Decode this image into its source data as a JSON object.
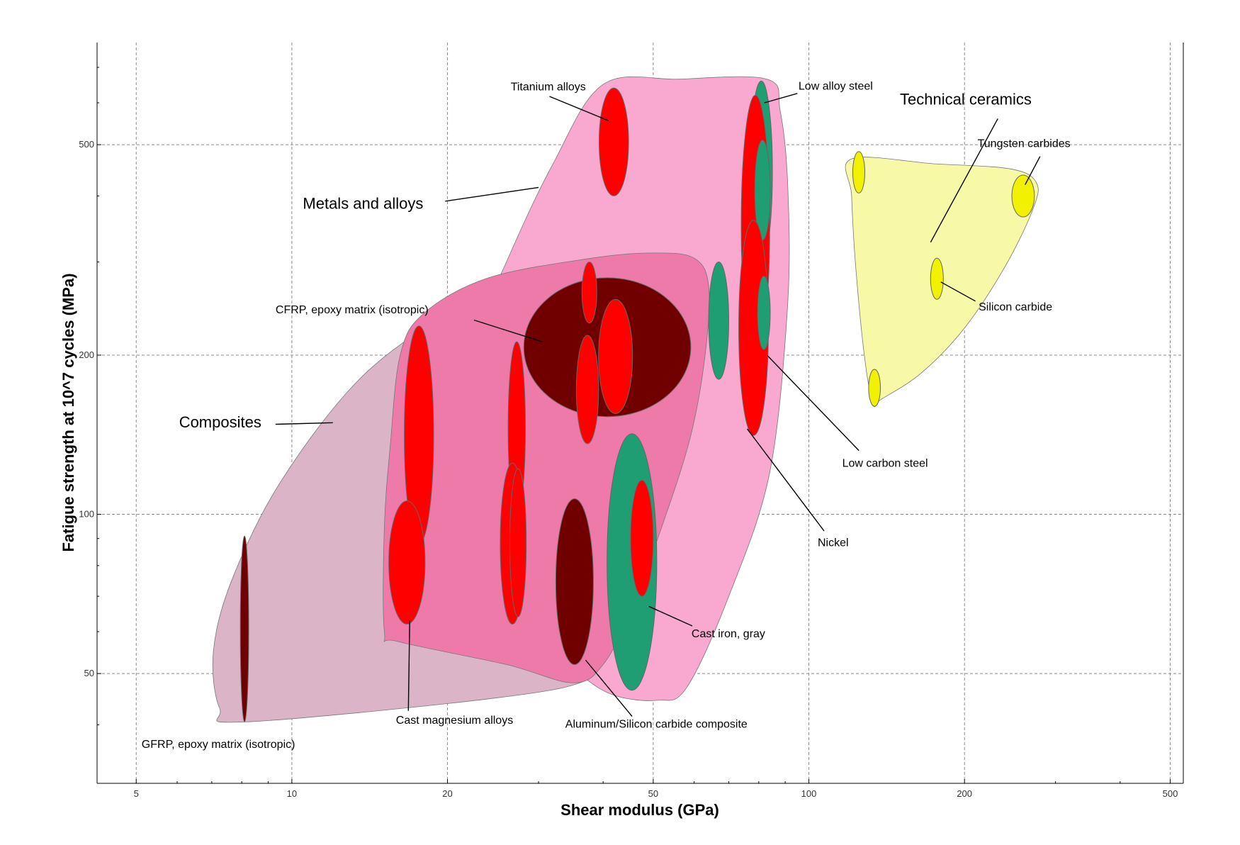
{
  "chart_data": {
    "type": "scatter",
    "title": "",
    "xlabel": "Shear modulus (GPa)",
    "ylabel": "Fatigue strength at 10^7 cycles (MPa)",
    "x_scale": "log",
    "y_scale": "log",
    "xlim": [
      4.2,
      530
    ],
    "ylim": [
      31,
      780
    ],
    "grid": true,
    "x_ticks": [
      {
        "value": 5,
        "label": "5"
      },
      {
        "value": 10,
        "label": "10"
      },
      {
        "value": 20,
        "label": "20"
      },
      {
        "value": 50,
        "label": "50"
      },
      {
        "value": 100,
        "label": "100"
      },
      {
        "value": 200,
        "label": "200"
      },
      {
        "value": 500,
        "label": "500"
      }
    ],
    "y_ticks": [
      {
        "value": 50,
        "label": "50"
      },
      {
        "value": 100,
        "label": "100"
      },
      {
        "value": 200,
        "label": "200"
      },
      {
        "value": 500,
        "label": "500"
      }
    ],
    "colors": {
      "metals_envelope": "#f9a8d0",
      "composites_envelope": "#dbb4c8",
      "inner_envelope": "#ee7aaa",
      "ceramics_envelope": "#f7f9a6",
      "red": "#ff0000",
      "dark_red": "#700000",
      "green": "#1f9e74",
      "yellow": "#f2f200",
      "leader": "#000000"
    },
    "envelopes": [
      {
        "name": "composites",
        "color": "composites_envelope",
        "points": [
          [
            8.1,
            40.5
          ],
          [
            7.25,
            43
          ],
          [
            7.05,
            55
          ],
          [
            7.65,
            75
          ],
          [
            9.5,
            115
          ],
          [
            13.5,
            180
          ],
          [
            20,
            240
          ],
          [
            28,
            285
          ],
          [
            42,
            305
          ],
          [
            54,
            300
          ],
          [
            61,
            290
          ],
          [
            64,
            260
          ],
          [
            62,
            200
          ],
          [
            56,
            115
          ],
          [
            46,
            58
          ],
          [
            38,
            49
          ],
          [
            25,
            45
          ]
        ]
      },
      {
        "name": "metals",
        "color": "metals_envelope",
        "points": [
          [
            24,
            160
          ],
          [
            22,
            200
          ],
          [
            26,
            300
          ],
          [
            32,
            460
          ],
          [
            40,
            650
          ],
          [
            56,
            665
          ],
          [
            83,
            665
          ],
          [
            88,
            580
          ],
          [
            91,
            420
          ],
          [
            91,
            250
          ],
          [
            84,
            120
          ],
          [
            70,
            70
          ],
          [
            58,
            47
          ],
          [
            51,
            44.5
          ],
          [
            42,
            45.5
          ],
          [
            36,
            50
          ],
          [
            30,
            60
          ],
          [
            26,
            80
          ],
          [
            24,
            110
          ]
        ]
      },
      {
        "name": "inner",
        "color": "inner_envelope",
        "points": [
          [
            15.1,
            60
          ],
          [
            15.1,
            95
          ],
          [
            15.5,
            135
          ],
          [
            16.2,
            200
          ],
          [
            18,
            240
          ],
          [
            24,
            280
          ],
          [
            38,
            305
          ],
          [
            50,
            312
          ],
          [
            60,
            305
          ],
          [
            64,
            270
          ],
          [
            63,
            200
          ],
          [
            59,
            140
          ],
          [
            52,
            95
          ],
          [
            45,
            65
          ],
          [
            40,
            52
          ],
          [
            35,
            48
          ],
          [
            26,
            52
          ],
          [
            16,
            57.5
          ]
        ]
      },
      {
        "name": "ceramics",
        "color": "ceramics_envelope",
        "points": [
          [
            121,
            470
          ],
          [
            175,
            460
          ],
          [
            245,
            450
          ],
          [
            275,
            425
          ],
          [
            272,
            380
          ],
          [
            240,
            295
          ],
          [
            200,
            225
          ],
          [
            165,
            185
          ],
          [
            138,
            165
          ],
          [
            133,
            162
          ],
          [
            128,
            200
          ],
          [
            123,
            300
          ],
          [
            121,
            400
          ]
        ]
      }
    ],
    "bubbles": [
      {
        "name": "gfrp-epoxy",
        "x": 8.1,
        "y": 61,
        "x_span": [
          7.95,
          8.25
        ],
        "y_span": [
          40.5,
          91
        ],
        "color": "dark_red"
      },
      {
        "name": "cast-mg-upper",
        "x": 17.6,
        "y": 142,
        "x_span": [
          16.5,
          18.8
        ],
        "y_span": [
          88,
          227
        ],
        "color": "red"
      },
      {
        "name": "cast-mg-lower",
        "x": 16.7,
        "y": 80,
        "x_span": [
          15.4,
          18.1
        ],
        "y_span": [
          62,
          106
        ],
        "color": "red"
      },
      {
        "name": "mid-red-upper",
        "x": 27.2,
        "y": 140,
        "x_span": [
          26.2,
          28.3
        ],
        "y_span": [
          100,
          212
        ],
        "color": "red"
      },
      {
        "name": "mid-red-lower",
        "x": 26.7,
        "y": 86,
        "x_span": [
          25.3,
          28.2
        ],
        "y_span": [
          62,
          125
        ],
        "color": "red"
      },
      {
        "name": "mid-red-inner",
        "x": 27.4,
        "y": 87,
        "x_span": [
          26.4,
          28.4
        ],
        "y_span": [
          64,
          122
        ],
        "color": "red"
      },
      {
        "name": "cfrp-epoxy",
        "x": 39.3,
        "y": 207,
        "x_span": [
          28.1,
          59.1
        ],
        "y_span": [
          153,
          280
        ],
        "color": "dark_red"
      },
      {
        "name": "cfrp-red-small",
        "x": 37.7,
        "y": 262,
        "x_span": [
          36.4,
          38.9
        ],
        "y_span": [
          230,
          300
        ],
        "color": "red"
      },
      {
        "name": "cfrp-red-big",
        "x": 42.3,
        "y": 198,
        "x_span": [
          39.2,
          45.6
        ],
        "y_span": [
          155,
          255
        ],
        "color": "red"
      },
      {
        "name": "cfrp-red-lower",
        "x": 37.3,
        "y": 170,
        "x_span": [
          35.5,
          39.2
        ],
        "y_span": [
          136,
          218
        ],
        "color": "red"
      },
      {
        "name": "titanium",
        "x": 42,
        "y": 510,
        "x_span": [
          39.3,
          44.8
        ],
        "y_span": [
          400,
          640
        ],
        "color": "red"
      },
      {
        "name": "al-sic-composite",
        "x": 35.2,
        "y": 73,
        "x_span": [
          32.4,
          38.3
        ],
        "y_span": [
          52,
          107
        ],
        "color": "dark_red"
      },
      {
        "name": "cast-iron-gray",
        "x": 45.5,
        "y": 78,
        "x_span": [
          40.7,
          50.8
        ],
        "y_span": [
          46.5,
          142
        ],
        "color": "green"
      },
      {
        "name": "cast-iron-red",
        "x": 47.5,
        "y": 89,
        "x_span": [
          45.2,
          50
        ],
        "y_span": [
          70,
          116
        ],
        "color": "red"
      },
      {
        "name": "nickel-green",
        "x": 67,
        "y": 225,
        "x_span": [
          64,
          70
        ],
        "y_span": [
          180,
          300
        ],
        "color": "green"
      },
      {
        "name": "low-alloy-steel",
        "x": 81,
        "y": 440,
        "x_span": [
          77,
          85
        ],
        "y_span": [
          300,
          660
        ],
        "color": "green"
      },
      {
        "name": "low-alloy-red",
        "x": 79,
        "y": 360,
        "x_span": [
          74,
          84
        ],
        "y_span": [
          200,
          620
        ],
        "color": "red"
      },
      {
        "name": "steel-green-inner",
        "x": 81.4,
        "y": 410,
        "x_span": [
          78.6,
          84.2
        ],
        "y_span": [
          330,
          510
        ],
        "color": "green"
      },
      {
        "name": "low-carbon-steel",
        "x": 78.2,
        "y": 220,
        "x_span": [
          73.2,
          83.5
        ],
        "y_span": [
          141,
          360
        ],
        "color": "red"
      },
      {
        "name": "steel-green-small",
        "x": 81.8,
        "y": 240,
        "x_span": [
          79.6,
          84.2
        ],
        "y_span": [
          205,
          282
        ],
        "color": "green"
      },
      {
        "name": "ceramic-1",
        "x": 125,
        "y": 450,
        "x_span": [
          121.6,
          128.3
        ],
        "y_span": [
          405,
          485
        ],
        "color": "yellow"
      },
      {
        "name": "tungsten-carbides",
        "x": 260,
        "y": 400,
        "x_span": [
          247,
          273
        ],
        "y_span": [
          365,
          438
        ],
        "color": "yellow"
      },
      {
        "name": "silicon-carbide",
        "x": 177,
        "y": 280,
        "x_span": [
          172,
          182
        ],
        "y_span": [
          255,
          305
        ],
        "color": "yellow"
      },
      {
        "name": "ceramic-4",
        "x": 134,
        "y": 172,
        "x_span": [
          130.5,
          137.5
        ],
        "y_span": [
          160,
          188
        ],
        "color": "yellow"
      }
    ],
    "annotations": [
      {
        "name": "titanium-alloys-label",
        "text": "Titanium alloys",
        "x": 26.5,
        "y": 633,
        "anchor": "start",
        "size": "small",
        "leader": [
          [
            31.5,
            617
          ],
          [
            41,
            555
          ]
        ]
      },
      {
        "name": "low-alloy-steel-label",
        "text": "Low alloy steel",
        "x": 95.5,
        "y": 635,
        "anchor": "start",
        "size": "small",
        "leader": [
          [
            95,
            625
          ],
          [
            82,
            600
          ]
        ]
      },
      {
        "name": "technical-ceramics-label",
        "text": "Technical ceramics",
        "x": 150,
        "y": 595,
        "anchor": "start",
        "size": "large",
        "leader": [
          [
            232,
            560
          ],
          [
            172,
            327
          ]
        ]
      },
      {
        "name": "tungsten-carbides-label",
        "text": "Tungsten carbides",
        "x": 212,
        "y": 495,
        "anchor": "start",
        "size": "small",
        "leader": [
          [
            280,
            475
          ],
          [
            262,
            420
          ]
        ]
      },
      {
        "name": "metals-and-alloys-label",
        "text": "Metals and alloys",
        "x": 10.5,
        "y": 378,
        "anchor": "start",
        "size": "large",
        "leader": [
          [
            19.8,
            391
          ],
          [
            30,
            415
          ]
        ]
      },
      {
        "name": "silicon-carbide-label",
        "text": "Silicon carbide",
        "x": 213,
        "y": 243,
        "anchor": "start",
        "size": "small",
        "leader": [
          [
            210,
            253
          ],
          [
            180,
            275
          ]
        ]
      },
      {
        "name": "cfrp-epoxy-label",
        "text": "CFRP, epoxy matrix (isotropic)",
        "x": 9.3,
        "y": 240,
        "anchor": "start",
        "size": "small",
        "leader": [
          [
            22.5,
            233
          ],
          [
            30.5,
            212
          ]
        ]
      },
      {
        "name": "composites-label",
        "text": "Composites",
        "x": 6.05,
        "y": 146,
        "anchor": "start",
        "size": "large",
        "leader": [
          [
            9.3,
            148
          ],
          [
            12,
            149
          ]
        ]
      },
      {
        "name": "low-carbon-steel-label",
        "text": "Low carbon steel",
        "x": 116,
        "y": 123,
        "anchor": "start",
        "size": "small",
        "leader": [
          [
            125,
            132
          ],
          [
            83,
            200
          ]
        ]
      },
      {
        "name": "nickel-label",
        "text": "Nickel",
        "x": 104,
        "y": 87,
        "anchor": "start",
        "size": "small",
        "leader": [
          [
            107,
            93
          ],
          [
            76,
            145
          ]
        ]
      },
      {
        "name": "cast-iron-gray-label",
        "text": "Cast iron, gray",
        "x": 59.3,
        "y": 58.5,
        "anchor": "start",
        "size": "small",
        "leader": [
          [
            59.5,
            61.5
          ],
          [
            49,
            67
          ]
        ]
      },
      {
        "name": "cast-magnesium-alloys-label",
        "text": "Cast magnesium alloys",
        "x": 15.9,
        "y": 40.2,
        "anchor": "start",
        "size": "small",
        "leader": [
          [
            16.8,
            42.5
          ],
          [
            16.9,
            63
          ]
        ]
      },
      {
        "name": "al-sic-composite-label",
        "text": "Aluminum/Silicon carbide composite",
        "x": 33.8,
        "y": 39.5,
        "anchor": "start",
        "size": "small",
        "leader": [
          [
            45.5,
            41.5
          ],
          [
            37,
            53
          ]
        ]
      },
      {
        "name": "gfrp-epoxy-label",
        "text": "GFRP, epoxy matrix (isotropic)",
        "x": 5.12,
        "y": 36.2,
        "anchor": "start",
        "size": "small",
        "leader": null
      }
    ]
  }
}
